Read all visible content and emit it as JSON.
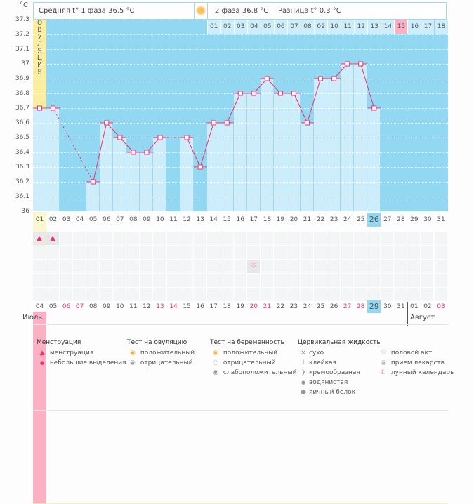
{
  "unit_label": "°C",
  "header": {
    "phase1": "Средняя t° 1 фаза 36.5 °C",
    "phase2": "2 фаза 36.8 °C",
    "diff": "Разница t° 0.3 °C"
  },
  "ovulation_label": "ОВУЛЯЦИЯ",
  "colors": {
    "background": "#93d8f2",
    "bar": "#cdedfb",
    "line": "#f0306a",
    "ovulation": "#fbeea0",
    "expected_period": "#fbb0c4",
    "coverline": "#fbeea0"
  },
  "chart_data": {
    "type": "line",
    "ylim": [
      36,
      37.3
    ],
    "yticks": [
      "37.3",
      "37.2",
      "37.1",
      "37",
      "36.9",
      "36.8",
      "36.7",
      "36.6",
      "36.5",
      "36.4",
      "36.3",
      "36.2",
      "36.1",
      "36"
    ],
    "coverline": 36.5,
    "cycle_days": [
      "01",
      "02",
      "03",
      "04",
      "05",
      "06",
      "07",
      "08",
      "09",
      "10",
      "11",
      "12",
      "13",
      "14",
      "15",
      "16",
      "17",
      "18",
      "19",
      "20",
      "21",
      "22",
      "23",
      "24",
      "25",
      "26",
      "27",
      "28",
      "29",
      "30",
      "31"
    ],
    "temperatures": [
      36.7,
      36.7,
      null,
      null,
      36.2,
      36.6,
      36.5,
      36.4,
      36.4,
      36.5,
      null,
      36.5,
      36.3,
      36.6,
      36.6,
      36.8,
      36.8,
      36.9,
      36.8,
      36.8,
      36.6,
      36.9,
      36.9,
      37.0,
      37.0,
      36.7,
      null,
      null,
      null,
      null,
      null
    ],
    "ovulation_day": 13,
    "expected_period_day": 28,
    "current_day": 26,
    "post_ovulation_days": [
      "01",
      "02",
      "03",
      "04",
      "05",
      "06",
      "07",
      "08",
      "09",
      "10",
      "11",
      "12",
      "13",
      "14",
      "15",
      "16",
      "17",
      "18"
    ],
    "post_ovulation_highlight": "15"
  },
  "dates": [
    "04",
    "05",
    "06",
    "07",
    "08",
    "09",
    "10",
    "11",
    "12",
    "13",
    "14",
    "15",
    "16",
    "17",
    "18",
    "19",
    "20",
    "21",
    "22",
    "23",
    "24",
    "25",
    "26",
    "27",
    "28",
    "29",
    "30",
    "31",
    "01",
    "02",
    "03"
  ],
  "weekend_dates": [
    2,
    3,
    9,
    10,
    16,
    17,
    23,
    24,
    30
  ],
  "today_date_index": 25,
  "months": {
    "july": "Июль",
    "august": "Август"
  },
  "marks": {
    "menstruation_days": [
      1,
      2
    ],
    "intercourse_days": [
      17
    ]
  },
  "legend": {
    "menstruation": {
      "title": "Менструация",
      "items": [
        "менструация",
        "небольшие выделения"
      ]
    },
    "ovulation_test": {
      "title": "Тест на овуляцию",
      "items": [
        "положительный",
        "отрицательный"
      ]
    },
    "pregnancy_test": {
      "title": "Тест на беременность",
      "items": [
        "положительный",
        "отрицательный",
        "слабоположительный"
      ]
    },
    "cervical": {
      "title": "Цервикальная жидкость",
      "items": [
        "сухо",
        "клейкая",
        "кремообразная",
        "водянистая",
        "яичный белок"
      ]
    },
    "other": {
      "items": [
        "половой акт",
        "прием лекарств",
        "лунный календарь"
      ]
    }
  }
}
